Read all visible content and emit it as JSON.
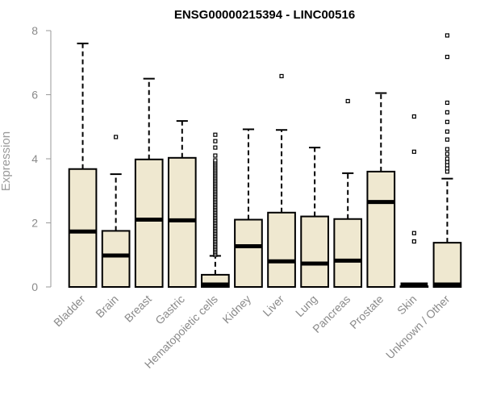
{
  "chart_data": {
    "type": "box",
    "title": "ENSG00000215394 - LINC00516",
    "xlabel": "",
    "ylabel": "Expression",
    "ylim": [
      0,
      8
    ],
    "yticks": [
      "0",
      "2",
      "4",
      "6",
      "8"
    ],
    "grid": false,
    "legend": "none",
    "colors": {
      "box_fill": "#efe8d0",
      "box_stroke": "#000000",
      "median": "#000000",
      "axis": "#9a9a9a"
    },
    "categories": [
      "Bladder",
      "Brain",
      "Breast",
      "Gastric",
      "Hematopoietic cells",
      "Kidney",
      "Liver",
      "Lung",
      "Pancreas",
      "Prostate",
      "Skin",
      "Unknown / Other"
    ],
    "boxes": [
      {
        "category": "Bladder",
        "min": 0,
        "q1": 0,
        "median": 1.73,
        "q3": 3.68,
        "max": 7.6,
        "outliers": []
      },
      {
        "category": "Brain",
        "min": 0,
        "q1": 0,
        "median": 0.98,
        "q3": 1.75,
        "max": 3.52,
        "outliers": [
          4.68
        ]
      },
      {
        "category": "Breast",
        "min": 0,
        "q1": 0,
        "median": 2.1,
        "q3": 3.98,
        "max": 6.5,
        "outliers": []
      },
      {
        "category": "Gastric",
        "min": 0,
        "q1": 0,
        "median": 2.08,
        "q3": 4.03,
        "max": 5.18,
        "outliers": []
      },
      {
        "category": "Hematopoietic cells",
        "min": 0,
        "q1": 0,
        "median": 0.05,
        "q3": 0.38,
        "max": 0.97,
        "outliers": [
          1.0,
          1.05,
          1.1,
          1.15,
          1.2,
          1.25,
          1.3,
          1.35,
          1.4,
          1.45,
          1.5,
          1.55,
          1.6,
          1.65,
          1.7,
          1.75,
          1.8,
          1.85,
          1.9,
          1.95,
          2.0,
          2.05,
          2.1,
          2.15,
          2.2,
          2.25,
          2.3,
          2.35,
          2.4,
          2.45,
          2.5,
          2.55,
          2.6,
          2.65,
          2.7,
          2.75,
          2.8,
          2.85,
          2.9,
          2.95,
          3.0,
          3.05,
          3.1,
          3.15,
          3.2,
          3.25,
          3.3,
          3.35,
          3.4,
          3.45,
          3.5,
          3.55,
          3.6,
          3.65,
          3.7,
          3.75,
          3.8,
          3.85,
          3.9,
          3.95,
          4.1,
          4.35,
          4.55,
          4.75
        ]
      },
      {
        "category": "Kidney",
        "min": 0,
        "q1": 0,
        "median": 1.27,
        "q3": 2.1,
        "max": 4.92,
        "outliers": []
      },
      {
        "category": "Liver",
        "min": 0,
        "q1": 0,
        "median": 0.8,
        "q3": 2.32,
        "max": 4.9,
        "outliers": [
          6.58
        ]
      },
      {
        "category": "Lung",
        "min": 0,
        "q1": 0,
        "median": 0.73,
        "q3": 2.2,
        "max": 4.35,
        "outliers": []
      },
      {
        "category": "Pancreas",
        "min": 0,
        "q1": 0,
        "median": 0.82,
        "q3": 2.12,
        "max": 3.55,
        "outliers": [
          5.8
        ]
      },
      {
        "category": "Prostate",
        "min": 0,
        "q1": 0,
        "median": 2.65,
        "q3": 3.6,
        "max": 6.05,
        "outliers": []
      },
      {
        "category": "Skin",
        "min": 0,
        "q1": 0,
        "median": 0.0,
        "q3": 0.02,
        "max": 0.03,
        "outliers": [
          1.42,
          1.68,
          4.22,
          5.32
        ]
      },
      {
        "category": "Unknown / Other",
        "min": 0,
        "q1": 0,
        "median": 0.02,
        "q3": 1.38,
        "max": 3.38,
        "outliers": [
          3.6,
          3.7,
          3.8,
          3.9,
          4.0,
          4.15,
          4.3,
          4.6,
          4.85,
          5.15,
          5.45,
          5.75,
          7.18,
          7.85
        ]
      }
    ]
  }
}
